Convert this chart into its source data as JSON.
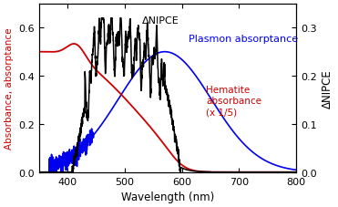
{
  "xlim": [
    350,
    800
  ],
  "ylim_left": [
    0.0,
    0.7
  ],
  "ylim_right": [
    0.0,
    0.35
  ],
  "xlabel": "Wavelength (nm)",
  "ylabel_left": "Absorbance, absorptance",
  "ylabel_right": "ΔNIPCE",
  "yticks_left": [
    0.0,
    0.2,
    0.4,
    0.6
  ],
  "yticks_right": [
    0.0,
    0.1,
    0.2,
    0.3
  ],
  "xticks": [
    400,
    500,
    600,
    700,
    800
  ],
  "annotation_nipce": "ΔNIPCE",
  "annotation_plasmon": "Plasmon absorptance",
  "annotation_hematite": "Hematite\nabsorbance\n(x 1/5)",
  "color_red": "#cc0000",
  "color_blue": "#0000ee",
  "color_black": "#000000",
  "background": "#ffffff"
}
